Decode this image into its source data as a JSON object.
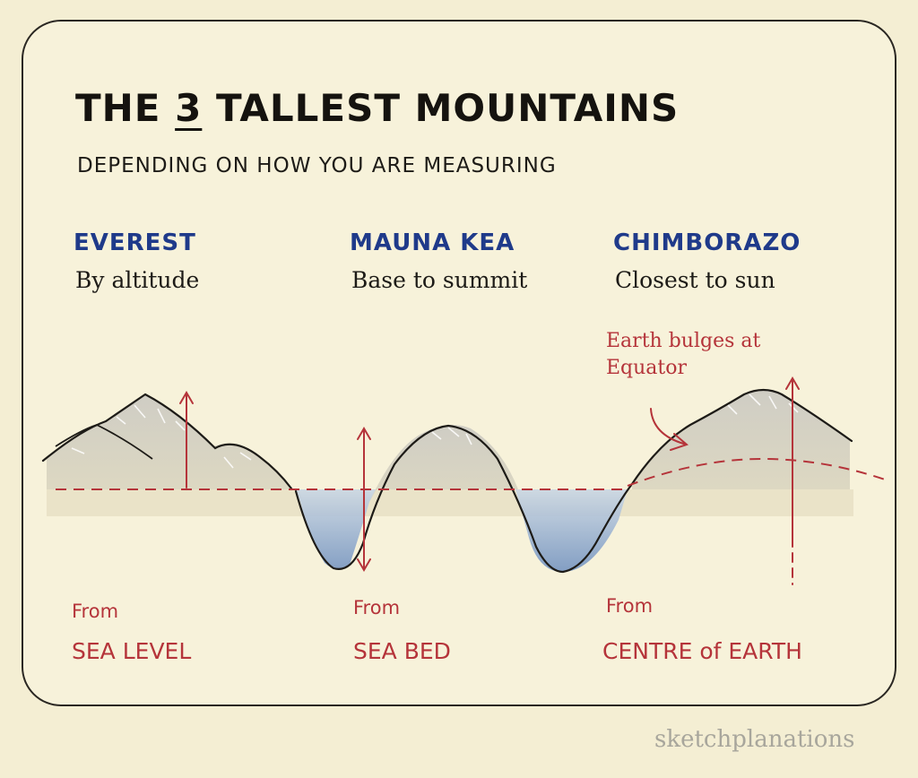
{
  "header": {
    "title_prefix": "THE ",
    "title_number": "3",
    "title_suffix": " TALLEST MOUNTAINS",
    "subtitle": "DEPENDING ON HOW YOU ARE MEASURING"
  },
  "mountains": [
    {
      "name": "EVEREST",
      "measure": "By altitude",
      "from": "From",
      "reference": "SEA LEVEL"
    },
    {
      "name": "MAUNA KEA",
      "measure": "Base to summit",
      "from": "From",
      "reference": "SEA BED"
    },
    {
      "name": "CHIMBORAZO",
      "measure": "Closest to sun",
      "from": "From",
      "reference": "CENTRE of EARTH"
    }
  ],
  "annotation": "Earth bulges at Equator",
  "credit": "sketchplanations",
  "colors": {
    "accent_red": "#b5343a",
    "name_blue": "#1f3a8a",
    "ink": "#1d1b17",
    "water": "#7f9fc4",
    "background": "#f4eed3"
  }
}
